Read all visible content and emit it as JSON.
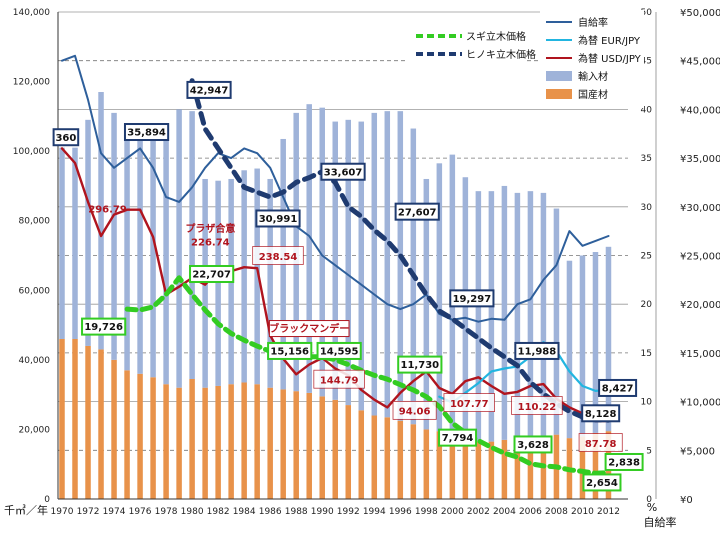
{
  "chart_data": {
    "type": "bar",
    "x": [
      1970,
      1971,
      1972,
      1973,
      1974,
      1975,
      1976,
      1977,
      1978,
      1979,
      1980,
      1981,
      1982,
      1983,
      1984,
      1985,
      1986,
      1987,
      1988,
      1989,
      1990,
      1991,
      1992,
      1993,
      1994,
      1995,
      1996,
      1997,
      1998,
      1999,
      2000,
      2001,
      2002,
      2003,
      2004,
      2005,
      2006,
      2007,
      2008,
      2009,
      2010,
      2011,
      2012
    ],
    "x_ticks": [
      "1970",
      "1972",
      "1974",
      "1976",
      "1978",
      "1980",
      "1982",
      "1984",
      "1986",
      "1988",
      "1990",
      "1992",
      "1994",
      "1996",
      "1998",
      "2000",
      "2002",
      "2004",
      "2006",
      "2008",
      "2010",
      "2012"
    ],
    "left_axis": {
      "ylim": [
        0,
        140000
      ],
      "ticks": [
        "0",
        "20,000",
        "40,000",
        "60,000",
        "80,000",
        "100,000",
        "120,000",
        "140,000"
      ],
      "unit": "千㎥／年"
    },
    "mid_axis": {
      "ylim": [
        0,
        50
      ],
      "ticks": [
        "0",
        "5",
        "10",
        "15",
        "20",
        "25",
        "30",
        "35",
        "40",
        "45",
        "50"
      ],
      "unit": "%",
      "label": "自給率"
    },
    "right_axis": {
      "ylim": [
        0,
        50000
      ],
      "ticks": [
        "¥0",
        "¥5,000",
        "¥10,000",
        "¥15,000",
        "¥20,000",
        "¥25,000",
        "¥30,000",
        "¥35,000",
        "¥40,000",
        "¥45,000",
        "¥50,000"
      ]
    },
    "legend": [
      {
        "name": "自給率",
        "color": "#2e5f9b",
        "kind": "line"
      },
      {
        "name": "為替 EUR/JPY",
        "color": "#22b5e0",
        "kind": "line"
      },
      {
        "name": "為替 USD/JPY",
        "color": "#b0141e",
        "kind": "line"
      },
      {
        "name": "輸入材",
        "color": "#9fb3d9",
        "kind": "box"
      },
      {
        "name": "国産材",
        "color": "#e8924a",
        "kind": "box"
      }
    ],
    "legend2": [
      {
        "name": "スギ立木価格",
        "color": "#33cc22",
        "kind": "dash"
      },
      {
        "name": "ヒノキ立木価格",
        "color": "#1f3b70",
        "kind": "dash"
      }
    ],
    "series": [
      {
        "name": "国産材",
        "axis": "left",
        "values": [
          46000,
          46000,
          44000,
          43000,
          40000,
          37000,
          36000,
          35000,
          33000,
          32000,
          34500,
          32000,
          32500,
          33000,
          33500,
          33000,
          32000,
          31500,
          31000,
          30500,
          29500,
          28500,
          27000,
          25500,
          24000,
          23500,
          22500,
          21500,
          20000,
          19500,
          18000,
          17500,
          16500,
          16500,
          17000,
          17000,
          17500,
          18000,
          18500,
          17500,
          18000,
          19000,
          19500
        ]
      },
      {
        "name": "輸入材",
        "axis": "left",
        "values": [
          55000,
          55000,
          65000,
          74000,
          71000,
          70000,
          70000,
          73000,
          74000,
          80000,
          77000,
          60000,
          59000,
          59000,
          61000,
          62000,
          60000,
          72000,
          80000,
          83000,
          83000,
          80000,
          82000,
          83000,
          87000,
          88000,
          89000,
          85000,
          72000,
          77000,
          81000,
          75000,
          72000,
          72000,
          73000,
          71000,
          71000,
          70000,
          65000,
          51000,
          52000,
          52000,
          53000
        ]
      },
      {
        "name": "自給率",
        "axis": "mid",
        "values": [
          45,
          45.5,
          41,
          35.5,
          34,
          35,
          36,
          34,
          31,
          30.5,
          32,
          34,
          35.5,
          35,
          36,
          35.5,
          34,
          31,
          28,
          27,
          25,
          24,
          23,
          22,
          21,
          20,
          19.5,
          20,
          21,
          19,
          18.4,
          18.6,
          18.2,
          18.5,
          18.4,
          20,
          20.5,
          22.5,
          24,
          27.5,
          26,
          26.5,
          27
        ]
      },
      {
        "name": "為替 USD/JPY",
        "axis": "right",
        "values": [
          36000,
          34500,
          30500,
          27000,
          29200,
          29700,
          29700,
          26900,
          21000,
          21800,
          22700,
          22000,
          23500,
          23400,
          23800,
          23700,
          16800,
          14400,
          12800,
          13800,
          14479,
          13400,
          12700,
          11200,
          10200,
          9400,
          10900,
          12100,
          13100,
          11400,
          10800,
          12100,
          12500,
          11600,
          10800,
          11000,
          11600,
          11800,
          10300,
          9400,
          8800,
          8000,
          8000
        ]
      },
      {
        "name": "為替 EUR/JPY",
        "axis": "right",
        "values": [
          null,
          null,
          null,
          null,
          null,
          null,
          null,
          null,
          null,
          null,
          null,
          null,
          null,
          null,
          null,
          null,
          null,
          null,
          null,
          null,
          null,
          null,
          null,
          null,
          null,
          null,
          null,
          null,
          null,
          10500,
          9900,
          10900,
          11900,
          13100,
          13400,
          13600,
          14600,
          16100,
          15200,
          13100,
          11600,
          11100,
          11200
        ]
      },
      {
        "name": "スギ立木価格",
        "axis": "right",
        "values": [
          null,
          null,
          null,
          null,
          null,
          19500,
          19400,
          19726,
          21000,
          22707,
          21000,
          19400,
          18000,
          17000,
          16300,
          15700,
          15156,
          14800,
          14700,
          14600,
          14595,
          14300,
          13800,
          13200,
          12700,
          12300,
          11730,
          11200,
          10500,
          9500,
          7794,
          6800,
          6000,
          5300,
          4700,
          4300,
          3628,
          3400,
          3300,
          3000,
          2838,
          2654,
          2700
        ]
      },
      {
        "name": "ヒノキ立木価格",
        "axis": "right",
        "values": [
          null,
          null,
          null,
          null,
          null,
          null,
          null,
          null,
          35894,
          null,
          42947,
          38000,
          36000,
          34000,
          32000,
          31500,
          30991,
          31500,
          32500,
          33000,
          33607,
          32500,
          30000,
          29000,
          27607,
          26500,
          25000,
          23000,
          21000,
          19297,
          18500,
          17500,
          16500,
          15500,
          14600,
          13700,
          11988,
          10800,
          9800,
          9000,
          8427,
          8128,
          8100
        ]
      }
    ],
    "annotations": [
      {
        "text": "360",
        "color": "#b0141e"
      },
      {
        "text": "35,894",
        "color": "#1f3b70"
      },
      {
        "text": "42,947",
        "color": "#1f3b70"
      },
      {
        "text": "296.79",
        "color": "#b0141e"
      },
      {
        "text": "33,607",
        "color": "#1f3b70"
      },
      {
        "text": "30,991",
        "color": "#1f3b70"
      },
      {
        "text": "27,607",
        "color": "#1f3b70"
      },
      {
        "text": "プラザ合意",
        "color": "#b0141e"
      },
      {
        "text": "226.74",
        "color": "#b0141e"
      },
      {
        "text": "238.54",
        "color": "#b0141e"
      },
      {
        "text": "22,707",
        "color": "#33aa22"
      },
      {
        "text": "19,297",
        "color": "#1f3b70"
      },
      {
        "text": "19,726",
        "color": "#33aa22"
      },
      {
        "text": "ブラックマンデー",
        "color": "#b0141e"
      },
      {
        "text": "15,156",
        "color": "#33aa22"
      },
      {
        "text": "14,595",
        "color": "#33aa22"
      },
      {
        "text": "11,730",
        "color": "#33aa22"
      },
      {
        "text": "11,988",
        "color": "#1f3b70"
      },
      {
        "text": "144.79",
        "color": "#b0141e"
      },
      {
        "text": "8,427",
        "color": "#1f3b70"
      },
      {
        "text": "94.06",
        "color": "#b0141e"
      },
      {
        "text": "107.77",
        "color": "#b0141e"
      },
      {
        "text": "110.22",
        "color": "#b0141e"
      },
      {
        "text": "8,128",
        "color": "#1f3b70"
      },
      {
        "text": "7,794",
        "color": "#33aa22"
      },
      {
        "text": "3,628",
        "color": "#33aa22"
      },
      {
        "text": "87.78",
        "color": "#b0141e"
      },
      {
        "text": "2,838",
        "color": "#33aa22"
      },
      {
        "text": "2,654",
        "color": "#33aa22"
      }
    ]
  }
}
